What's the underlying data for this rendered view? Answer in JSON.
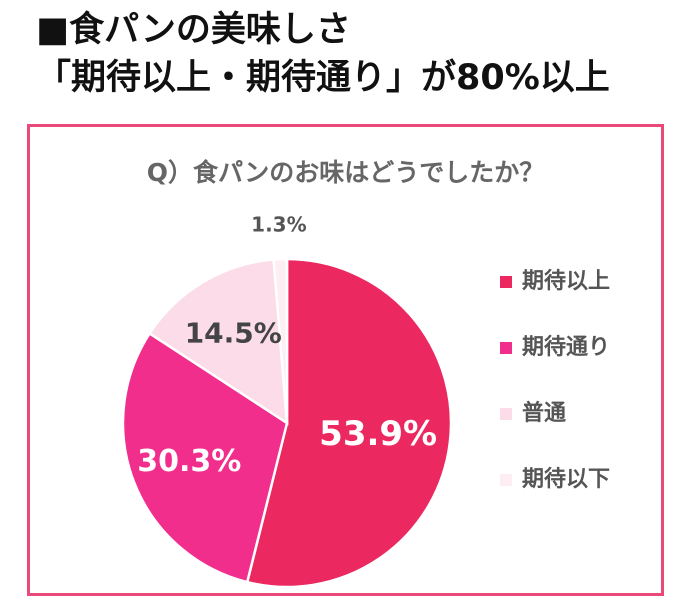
{
  "headline": {
    "line1": "■食パンの美味しさ",
    "line2": "「期待以上・期待通り」が80%以上"
  },
  "chart_data": {
    "type": "pie",
    "title": "Q）食パンのお味はどうでしたか？",
    "slices": [
      {
        "name": "期待以上",
        "value": 53.9,
        "label": "53.9%",
        "color": "#ec2860",
        "label_color": "#ffffff"
      },
      {
        "name": "期待通り",
        "value": 30.3,
        "label": "30.3%",
        "color": "#f12e8c",
        "label_color": "#ffffff"
      },
      {
        "name": "普通",
        "value": 14.5,
        "label": "14.5%",
        "color": "#fbdce8",
        "label_color": "#444444"
      },
      {
        "name": "期待以下",
        "value": 1.3,
        "label": "1.3%",
        "color": "#fdeef4",
        "label_color": "#555555"
      }
    ],
    "start_angle": "12 o'clock",
    "direction": "clockwise",
    "legend_position": "right"
  }
}
